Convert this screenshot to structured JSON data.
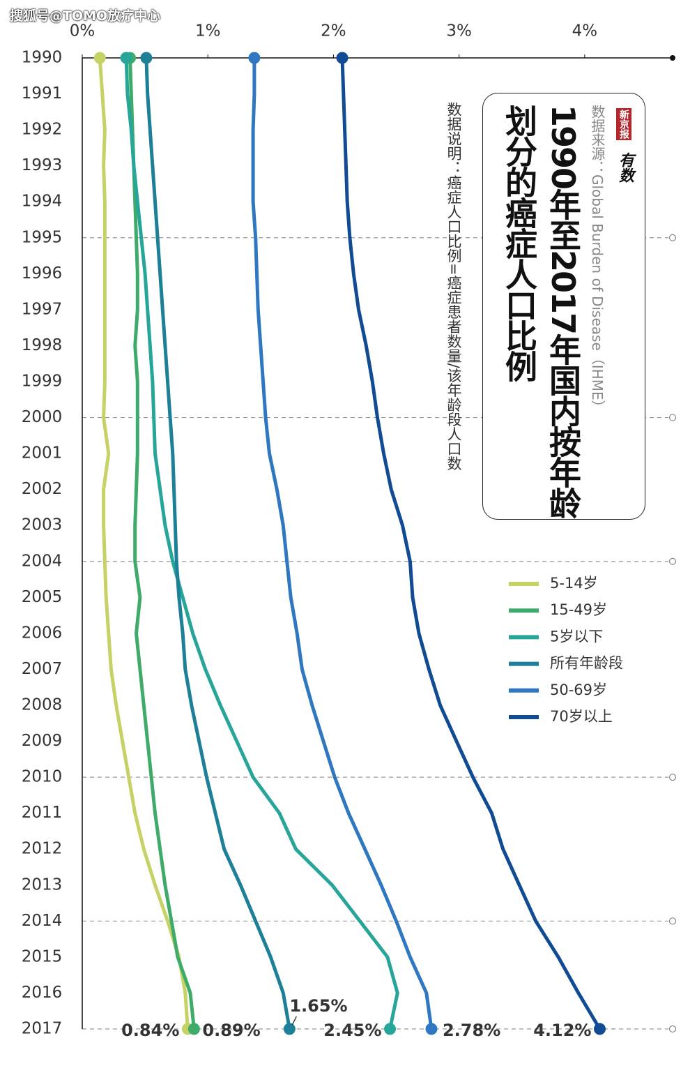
{
  "watermark": "搜狐号@TOMO放疗中心",
  "chart_data": {
    "type": "line",
    "orientation": "horizontal",
    "title": [
      "1990年至2017年国内按年龄",
      "划分的癌症人口比例"
    ],
    "logo": [
      "新京报",
      "有数"
    ],
    "source": "数据来源：Global Burden of Disease（IHME）",
    "note": "数据说明：癌症人口比例=癌症患者数量/该年龄段人口数",
    "categories": [
      "1990",
      "1991",
      "1992",
      "1993",
      "1994",
      "1995",
      "1996",
      "1997",
      "1998",
      "1999",
      "2000",
      "2001",
      "2002",
      "2003",
      "2004",
      "2005",
      "2006",
      "2007",
      "2008",
      "2009",
      "2010",
      "2011",
      "2012",
      "2013",
      "2014",
      "2015",
      "2016",
      "2017"
    ],
    "xlim": [
      0,
      4.7
    ],
    "xticks": [
      {
        "value": 0,
        "label": "0%"
      },
      {
        "value": 1,
        "label": "1%"
      },
      {
        "value": 2,
        "label": "2%"
      },
      {
        "value": 3,
        "label": "3%"
      },
      {
        "value": 4,
        "label": "4%"
      }
    ],
    "grid_at": [
      5,
      10,
      14,
      20,
      24,
      27
    ],
    "series": [
      {
        "name": "5-14岁",
        "color": "#c6d266",
        "end_label": "0.84%",
        "values": [
          0.14,
          0.16,
          0.18,
          0.17,
          0.18,
          0.18,
          0.18,
          0.18,
          0.18,
          0.18,
          0.17,
          0.21,
          0.17,
          0.17,
          0.18,
          0.19,
          0.21,
          0.23,
          0.27,
          0.32,
          0.37,
          0.42,
          0.49,
          0.58,
          0.68,
          0.77,
          0.82,
          0.84
        ]
      },
      {
        "name": "15-49岁",
        "color": "#3fab6b",
        "end_label": "0.89%",
        "values": [
          0.38,
          0.39,
          0.4,
          0.41,
          0.42,
          0.43,
          0.44,
          0.44,
          0.42,
          0.44,
          0.44,
          0.44,
          0.43,
          0.42,
          0.42,
          0.46,
          0.43,
          0.46,
          0.49,
          0.52,
          0.55,
          0.58,
          0.62,
          0.66,
          0.71,
          0.76,
          0.86,
          0.89
        ]
      },
      {
        "name": "5岁以下",
        "color": "#27a598",
        "end_label": "2.45%",
        "values": [
          0.35,
          0.36,
          0.39,
          0.41,
          0.44,
          0.47,
          0.5,
          0.52,
          0.54,
          0.56,
          0.57,
          0.58,
          0.62,
          0.66,
          0.72,
          0.8,
          0.88,
          0.98,
          1.1,
          1.23,
          1.36,
          1.57,
          1.7,
          1.99,
          2.21,
          2.43,
          2.51,
          2.45
        ]
      },
      {
        "name": "所有年龄段",
        "color": "#1d7f98",
        "end_label": "1.65%",
        "values": [
          0.51,
          0.52,
          0.54,
          0.56,
          0.58,
          0.6,
          0.62,
          0.64,
          0.66,
          0.68,
          0.7,
          0.72,
          0.73,
          0.74,
          0.75,
          0.77,
          0.8,
          0.82,
          0.87,
          0.93,
          0.99,
          1.06,
          1.13,
          1.26,
          1.38,
          1.5,
          1.6,
          1.65
        ]
      },
      {
        "name": "50-69岁",
        "color": "#2f77c0",
        "end_label": "2.78%",
        "values": [
          1.37,
          1.37,
          1.36,
          1.36,
          1.36,
          1.38,
          1.39,
          1.4,
          1.42,
          1.44,
          1.46,
          1.49,
          1.55,
          1.6,
          1.63,
          1.66,
          1.71,
          1.75,
          1.83,
          1.92,
          2.01,
          2.12,
          2.25,
          2.38,
          2.5,
          2.61,
          2.74,
          2.78
        ]
      },
      {
        "name": "70岁以上",
        "color": "#104b94",
        "end_label": "4.12%",
        "values": [
          2.07,
          2.08,
          2.09,
          2.1,
          2.11,
          2.13,
          2.16,
          2.2,
          2.26,
          2.31,
          2.35,
          2.4,
          2.46,
          2.55,
          2.61,
          2.63,
          2.68,
          2.76,
          2.85,
          2.98,
          3.11,
          3.26,
          3.35,
          3.48,
          3.61,
          3.79,
          3.95,
          4.12
        ]
      }
    ]
  }
}
